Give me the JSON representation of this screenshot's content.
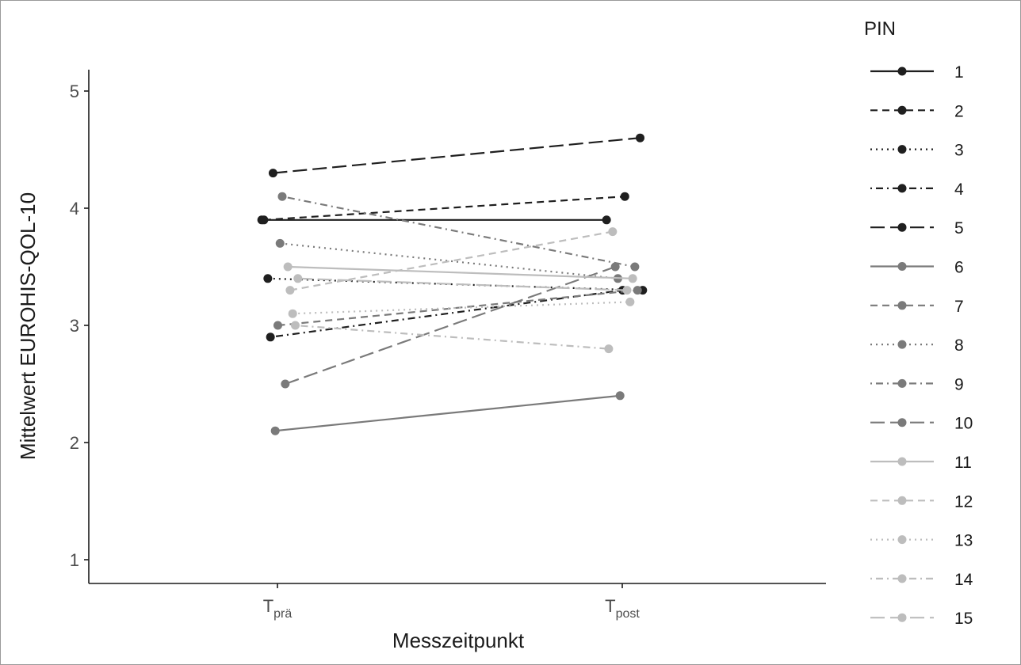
{
  "chart_data": {
    "type": "line",
    "ylabel": "Mittelwert EUROHIS-QOL-10",
    "xlabel": "Messzeitpunkt",
    "x_categories": [
      {
        "main": "T",
        "sub": "prä"
      },
      {
        "main": "T",
        "sub": "post"
      }
    ],
    "ylim": [
      0.85,
      5.1
    ],
    "yticks": [
      "1",
      "2",
      "3",
      "4",
      "5"
    ],
    "grid": false,
    "legend": {
      "title": "PIN",
      "position": "right"
    },
    "series": [
      {
        "name": "1",
        "values": [
          3.9,
          3.9
        ],
        "color": "#1f1f1f",
        "dash": "solid"
      },
      {
        "name": "2",
        "values": [
          3.9,
          4.1
        ],
        "color": "#1f1f1f",
        "dash": "dashed"
      },
      {
        "name": "3",
        "values": [
          3.4,
          3.3
        ],
        "color": "#1f1f1f",
        "dash": "dotted"
      },
      {
        "name": "4",
        "values": [
          2.9,
          3.3
        ],
        "color": "#1f1f1f",
        "dash": "dotdash"
      },
      {
        "name": "5",
        "values": [
          4.3,
          4.6
        ],
        "color": "#1f1f1f",
        "dash": "longdash"
      },
      {
        "name": "6",
        "values": [
          2.1,
          2.4
        ],
        "color": "#7a7a7a",
        "dash": "solid"
      },
      {
        "name": "7",
        "values": [
          3.0,
          3.3
        ],
        "color": "#7a7a7a",
        "dash": "dashed"
      },
      {
        "name": "8",
        "values": [
          3.7,
          3.4
        ],
        "color": "#7a7a7a",
        "dash": "dotted"
      },
      {
        "name": "9",
        "values": [
          4.1,
          3.5
        ],
        "color": "#7a7a7a",
        "dash": "dotdash"
      },
      {
        "name": "10",
        "values": [
          2.5,
          3.5
        ],
        "color": "#7a7a7a",
        "dash": "longdash"
      },
      {
        "name": "11",
        "values": [
          3.5,
          3.4
        ],
        "color": "#bdbdbd",
        "dash": "solid"
      },
      {
        "name": "12",
        "values": [
          3.3,
          3.8
        ],
        "color": "#bdbdbd",
        "dash": "dashed"
      },
      {
        "name": "13",
        "values": [
          3.1,
          3.2
        ],
        "color": "#bdbdbd",
        "dash": "dotted"
      },
      {
        "name": "14",
        "values": [
          3.0,
          2.8
        ],
        "color": "#bdbdbd",
        "dash": "dotdash"
      },
      {
        "name": "15",
        "values": [
          3.4,
          3.3
        ],
        "color": "#bdbdbd",
        "dash": "longdash"
      }
    ]
  }
}
